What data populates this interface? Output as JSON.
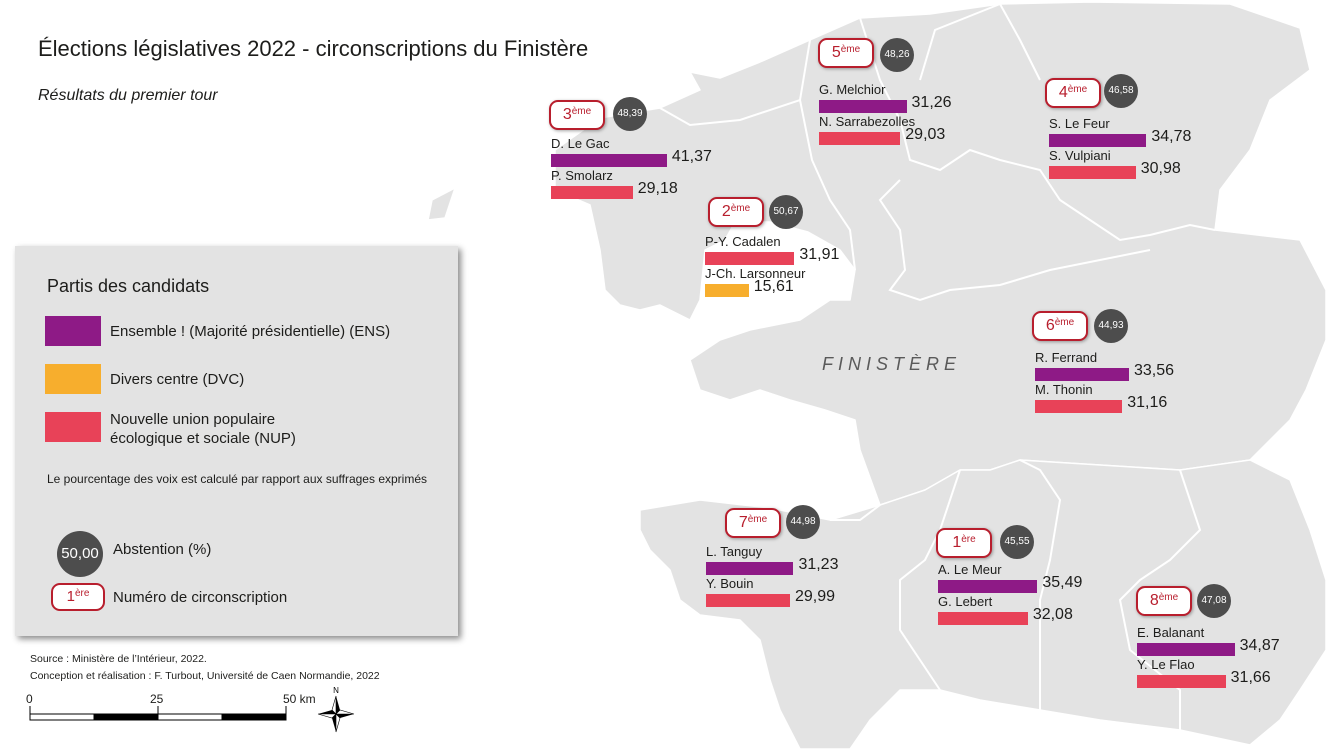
{
  "title": "Élections législatives 2022 - circonscriptions du Finistère",
  "subtitle": "Résultats du premier tour",
  "map_label": "FINISTÈRE",
  "colors": {
    "ENS": "#8e1a86",
    "DVC": "#f7ae2d",
    "NUP": "#e84258",
    "land": "#e3e3e3",
    "border": "#ffffff"
  },
  "circonscriptions": [
    {
      "num": "1",
      "suffix": "ère",
      "abstention": "45,55",
      "candidates": [
        {
          "name": "A. Le Meur",
          "party": "ENS",
          "value": "35,49"
        },
        {
          "name": "G. Lebert",
          "party": "NUP",
          "value": "32,08"
        }
      ]
    },
    {
      "num": "2",
      "suffix": "ème",
      "abstention": "50,67",
      "candidates": [
        {
          "name": "P-Y. Cadalen",
          "party": "NUP",
          "value": "31,91"
        },
        {
          "name": "J-Ch. Larsonneur",
          "party": "DVC",
          "value": "15,61"
        }
      ]
    },
    {
      "num": "3",
      "suffix": "ème",
      "abstention": "48,39",
      "candidates": [
        {
          "name": "D. Le Gac",
          "party": "ENS",
          "value": "41,37"
        },
        {
          "name": "P. Smolarz",
          "party": "NUP",
          "value": "29,18"
        }
      ]
    },
    {
      "num": "4",
      "suffix": "ème",
      "abstention": "46,58",
      "candidates": [
        {
          "name": "S. Le Feur",
          "party": "ENS",
          "value": "34,78"
        },
        {
          "name": "S. Vulpiani",
          "party": "NUP",
          "value": "30,98"
        }
      ]
    },
    {
      "num": "5",
      "suffix": "ème",
      "abstention": "48,26",
      "candidates": [
        {
          "name": "G. Melchior",
          "party": "ENS",
          "value": "31,26"
        },
        {
          "name": "N. Sarrabezolles",
          "party": "NUP",
          "value": "29,03"
        }
      ]
    },
    {
      "num": "6",
      "suffix": "ème",
      "abstention": "44,93",
      "candidates": [
        {
          "name": "R. Ferrand",
          "party": "ENS",
          "value": "33,56"
        },
        {
          "name": "M. Thonin",
          "party": "NUP",
          "value": "31,16"
        }
      ]
    },
    {
      "num": "7",
      "suffix": "ème",
      "abstention": "44,98",
      "candidates": [
        {
          "name": "L. Tanguy",
          "party": "ENS",
          "value": "31,23"
        },
        {
          "name": "Y. Bouin",
          "party": "NUP",
          "value": "29,99"
        }
      ]
    },
    {
      "num": "8",
      "suffix": "ème",
      "abstention": "47,08",
      "candidates": [
        {
          "name": "E. Balanant",
          "party": "ENS",
          "value": "34,87"
        },
        {
          "name": "Y. Le Flao",
          "party": "NUP",
          "value": "31,66"
        }
      ]
    }
  ],
  "legend": {
    "title": "Partis des candidats",
    "items": [
      {
        "party": "ENS",
        "label": "Ensemble ! (Majorité présidentielle) (ENS)"
      },
      {
        "party": "DVC",
        "label": "Divers centre (DVC)"
      },
      {
        "party": "NUP",
        "label_line1": "Nouvelle union populaire",
        "label_line2": "écologique et sociale (NUP)"
      }
    ],
    "note": "Le pourcentage des voix est calculé par rapport aux suffrages exprimés",
    "abstention_example": "50,00",
    "abstention_label": "Abstention (%)",
    "circ_example_num": "1",
    "circ_example_suffix": "ère",
    "circ_label": "Numéro de circonscription"
  },
  "source": "Source : Ministère de l’Intérieur, 2022.",
  "credits": "Conception et réalisation : F. Turbout, Université de Caen Normandie, 2022",
  "scale": {
    "labels": [
      "0",
      "25",
      "50 km"
    ]
  },
  "north_label": "N"
}
